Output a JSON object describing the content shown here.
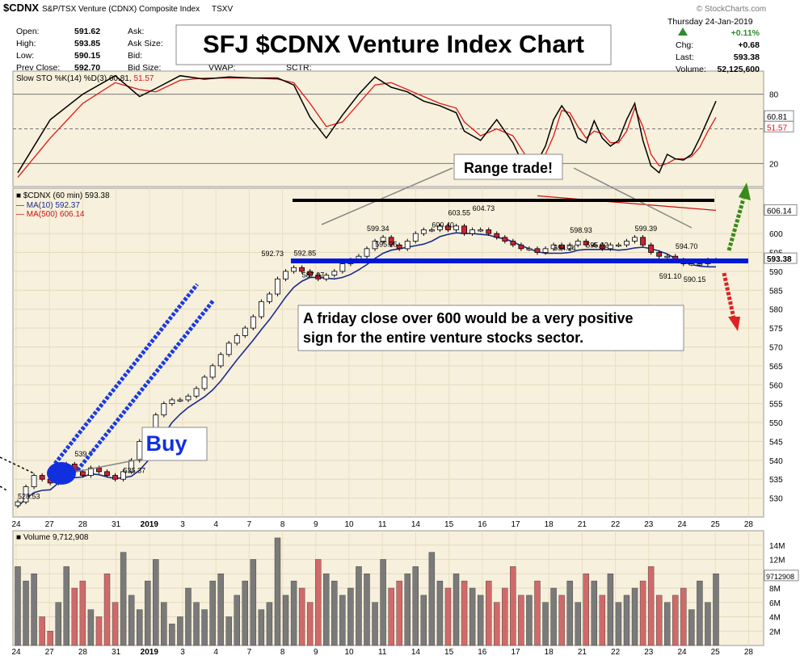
{
  "header": {
    "symbol": "$CDNX",
    "name": "S&P/TSX Venture (CDNX) Composite Index",
    "exchange": "TSXV",
    "brand": "© StockCharts.com",
    "date": "Thursday  24-Jan-2019",
    "open_label": "Open:",
    "open": "591.62",
    "high_label": "High:",
    "high": "593.85",
    "low_label": "Low:",
    "low": "590.15",
    "prev_label": "Prev Close:",
    "prev": "592.70",
    "ask_label": "Ask:",
    "asksize_label": "Ask Size:",
    "bid_label": "Bid:",
    "bidsize_label": "Bid Size:",
    "vwap_label": "VWAP:",
    "sctr_label": "SCTR:",
    "pct": "+0.11%",
    "chg_label": "Chg:",
    "chg": "+0.68",
    "last_label": "Last:",
    "last": "593.38",
    "volume_label": "Volume:",
    "volume": "52,125,600"
  },
  "overlays": {
    "title": "SFJ $CDNX Venture Index Chart",
    "range_label": "Range trade!",
    "buy_label": "Buy",
    "note_line1": "A friday close over 600 would be a very positive",
    "note_line2": "sign for the entire venture stocks sector."
  },
  "colors": {
    "panel_bg": "#f7f0dc",
    "up": "#ffffff",
    "down": "#cc2233",
    "ma10": "#1a2b8c",
    "ma500": "#cc1111",
    "support_line": "#0018d8",
    "resistance_line": "#000000",
    "buy_marker": "#1030e0",
    "arrow_up": "#3a8a1a",
    "arrow_down": "#dd2222",
    "vol_up": "#7a7a7a",
    "vol_down": "#d06a6a"
  },
  "chart_data": [
    {
      "type": "line",
      "panel": "stochastic",
      "legend": "Slow STO %K(14) %D(3) 60.81, 51.57",
      "series": [
        {
          "name": "%K(14)",
          "last": 60.81
        },
        {
          "name": "%D(3)",
          "last": 51.57
        }
      ],
      "ylim": [
        0,
        100
      ],
      "ticks": [
        "80",
        "20"
      ],
      "value_labels": [
        "60.81",
        "51.57"
      ],
      "points_k": [
        [
          0,
          12
        ],
        [
          4,
          58
        ],
        [
          8,
          80
        ],
        [
          12,
          96
        ],
        [
          15,
          78
        ],
        [
          17,
          85
        ],
        [
          20,
          96
        ],
        [
          23,
          93
        ],
        [
          26,
          95
        ],
        [
          29,
          94
        ],
        [
          32,
          94
        ],
        [
          34,
          88
        ],
        [
          36,
          60
        ],
        [
          38,
          42
        ],
        [
          40,
          62
        ],
        [
          42,
          80
        ],
        [
          44,
          95
        ],
        [
          46,
          86
        ],
        [
          48,
          82
        ],
        [
          50,
          74
        ],
        [
          52,
          70
        ],
        [
          54,
          64
        ],
        [
          55,
          48
        ],
        [
          57,
          40
        ],
        [
          59,
          58
        ],
        [
          61,
          38
        ],
        [
          63,
          8
        ],
        [
          65,
          35
        ],
        [
          66,
          58
        ],
        [
          67,
          70
        ],
        [
          68,
          60
        ],
        [
          69,
          42
        ],
        [
          70,
          38
        ],
        [
          71,
          57
        ],
        [
          72,
          42
        ],
        [
          73,
          35
        ],
        [
          74,
          40
        ],
        [
          75,
          58
        ],
        [
          76,
          72
        ],
        [
          77,
          40
        ],
        [
          78,
          18
        ],
        [
          79,
          12
        ],
        [
          80,
          28
        ],
        [
          81,
          24
        ],
        [
          82,
          23
        ],
        [
          83,
          28
        ],
        [
          84,
          42
        ],
        [
          85,
          58
        ],
        [
          86,
          74
        ]
      ],
      "points_d": [
        [
          0,
          8
        ],
        [
          4,
          42
        ],
        [
          8,
          72
        ],
        [
          12,
          90
        ],
        [
          15,
          84
        ],
        [
          17,
          82
        ],
        [
          20,
          92
        ],
        [
          23,
          94
        ],
        [
          26,
          94
        ],
        [
          29,
          94
        ],
        [
          32,
          93
        ],
        [
          34,
          90
        ],
        [
          36,
          72
        ],
        [
          38,
          52
        ],
        [
          40,
          56
        ],
        [
          42,
          72
        ],
        [
          44,
          88
        ],
        [
          46,
          90
        ],
        [
          48,
          84
        ],
        [
          50,
          78
        ],
        [
          52,
          72
        ],
        [
          54,
          68
        ],
        [
          55,
          56
        ],
        [
          57,
          44
        ],
        [
          59,
          50
        ],
        [
          61,
          44
        ],
        [
          63,
          22
        ],
        [
          65,
          28
        ],
        [
          66,
          44
        ],
        [
          67,
          66
        ],
        [
          68,
          64
        ],
        [
          69,
          52
        ],
        [
          70,
          42
        ],
        [
          71,
          48
        ],
        [
          72,
          46
        ],
        [
          73,
          38
        ],
        [
          74,
          38
        ],
        [
          75,
          48
        ],
        [
          76,
          68
        ],
        [
          77,
          52
        ],
        [
          78,
          28
        ],
        [
          79,
          18
        ],
        [
          80,
          20
        ],
        [
          81,
          24
        ],
        [
          82,
          24
        ],
        [
          83,
          26
        ],
        [
          84,
          34
        ],
        [
          85,
          48
        ],
        [
          86,
          60
        ]
      ]
    },
    {
      "type": "candlestick",
      "panel": "price",
      "legend": "$CDNX (60 min) 593.38",
      "series": [
        {
          "name": "MA(10)",
          "last": 592.37
        },
        {
          "name": "MA(500)",
          "last": 606.14
        }
      ],
      "ylim": [
        525,
        612
      ],
      "yticks": [
        "600",
        "595",
        "590",
        "585",
        "580",
        "575",
        "570",
        "565",
        "560",
        "555",
        "550",
        "545",
        "540",
        "535",
        "530"
      ],
      "value_labels": [
        "606.14",
        "593.38"
      ],
      "x_labels": [
        "24",
        "27",
        "28",
        "31",
        "2019",
        "3",
        "4",
        "7",
        "8",
        "9",
        "10",
        "11",
        "14",
        "15",
        "16",
        "17",
        "18",
        "21",
        "22",
        "23",
        "24",
        "25",
        "28"
      ],
      "annotations": [
        {
          "x": 1,
          "y": 528.53,
          "text": "528.53"
        },
        {
          "x": 8,
          "y": 539.7,
          "text": "539.7"
        },
        {
          "x": 14,
          "y": 535.37,
          "text": "535.37"
        },
        {
          "x": 31,
          "y": 592.73,
          "text": "592.73"
        },
        {
          "x": 35,
          "y": 592.85,
          "text": "592.85"
        },
        {
          "x": 36,
          "y": 587.07,
          "text": "587.07"
        },
        {
          "x": 44,
          "y": 599.34,
          "text": "599.34"
        },
        {
          "x": 45,
          "y": 595.25,
          "text": "595.25"
        },
        {
          "x": 52,
          "y": 600.4,
          "text": "600.40"
        },
        {
          "x": 54,
          "y": 603.55,
          "text": "603.55"
        },
        {
          "x": 57,
          "y": 604.73,
          "text": "604.73"
        },
        {
          "x": 69,
          "y": 598.93,
          "text": "598.93"
        },
        {
          "x": 67,
          "y": 594.24,
          "text": "594.24"
        },
        {
          "x": 71,
          "y": 595.02,
          "text": "595.02"
        },
        {
          "x": 77,
          "y": 599.39,
          "text": "599.39"
        },
        {
          "x": 82,
          "y": 594.7,
          "text": "594.70"
        },
        {
          "x": 80,
          "y": 591.1,
          "text": "591.10"
        },
        {
          "x": 83,
          "y": 590.15,
          "text": "590.15"
        }
      ],
      "closes": [
        529,
        533,
        536,
        535,
        534,
        538,
        539,
        537,
        536,
        538,
        537,
        536,
        535,
        537,
        540,
        545,
        548,
        552,
        555,
        556,
        556,
        557,
        559,
        562,
        565,
        568,
        571,
        573,
        575,
        578,
        582,
        584,
        588,
        590,
        591,
        590,
        589,
        588,
        589,
        590,
        592,
        593,
        594,
        596,
        598,
        599,
        597,
        596,
        598,
        600,
        601,
        601,
        602,
        601,
        602,
        600,
        601,
        601,
        600,
        599,
        598,
        597,
        596,
        596,
        595,
        596,
        597,
        596,
        597,
        598,
        597,
        597,
        596,
        597,
        597,
        598,
        599,
        597,
        595,
        594,
        594,
        593,
        592,
        592,
        592,
        593,
        593
      ],
      "support": 590,
      "resistance": 605
    },
    {
      "type": "bar",
      "panel": "volume",
      "legend": "Volume 9,712,908",
      "ylim": [
        0,
        16
      ],
      "yticks": [
        "14M",
        "12M",
        "10M",
        "8M",
        "6M",
        "4M",
        "2M"
      ],
      "value_labels": [
        "9712908"
      ],
      "values": [
        11,
        9,
        10,
        4,
        2,
        6,
        11,
        8,
        9,
        5,
        4,
        10,
        6,
        13,
        7,
        5,
        9,
        12,
        6,
        3,
        4,
        8,
        6,
        5,
        9,
        10,
        4,
        7,
        9,
        12,
        5,
        6,
        15,
        7,
        9,
        8,
        6,
        12,
        10,
        9,
        7,
        8,
        11,
        10,
        6,
        12,
        8,
        9,
        10,
        11,
        7,
        13,
        9,
        8,
        10,
        9,
        8,
        7,
        9,
        6,
        8,
        11,
        7,
        7,
        9,
        6,
        8,
        7,
        9,
        6,
        10,
        9,
        7,
        10,
        6,
        7,
        8,
        9,
        11,
        7,
        6,
        7,
        8,
        5,
        9,
        6,
        10
      ]
    }
  ]
}
